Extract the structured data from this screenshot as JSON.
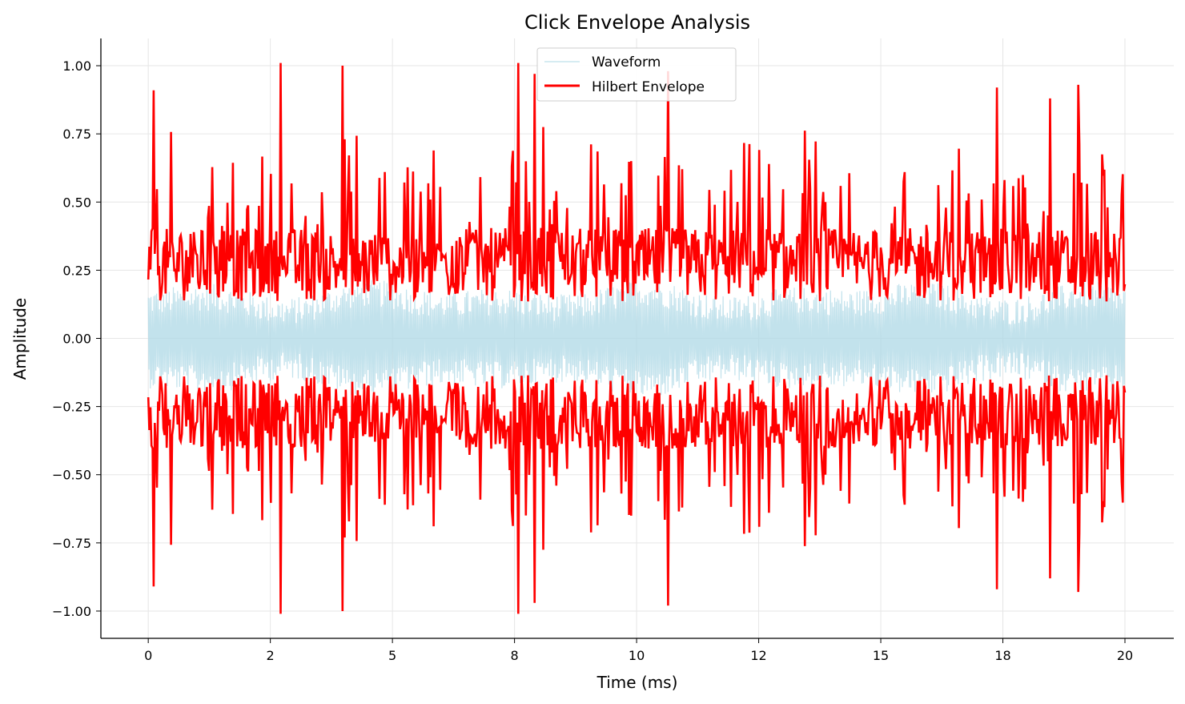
{
  "chart_data": {
    "type": "line",
    "title": "Click Envelope Analysis",
    "xlabel": "Time (ms)",
    "ylabel": "Amplitude",
    "xlim": [
      -0.97,
      21.0
    ],
    "ylim": [
      -1.1,
      1.1
    ],
    "x_ticks": [
      0,
      2.5,
      5,
      7.5,
      10,
      12.5,
      15,
      17.5,
      20
    ],
    "x_tick_labels": [
      "0",
      "2",
      "5",
      "8",
      "10",
      "12",
      "15",
      "18",
      "20"
    ],
    "y_ticks": [
      1.0,
      0.75,
      0.5,
      0.25,
      0.0,
      -0.25,
      -0.5,
      -0.75,
      -1.0
    ],
    "y_tick_labels": [
      "1.00",
      "0.75",
      "0.50",
      "0.25",
      "0.00",
      "−0.25",
      "−0.50",
      "−0.75",
      "−1.00"
    ],
    "grid": true,
    "legend_position": "top-center",
    "series": [
      {
        "name": "Waveform",
        "color": "#add8e6",
        "style": "dense oscillation",
        "x_range": [
          0,
          20
        ],
        "typical_amplitude": 0.12,
        "peak_amplitude": 0.22
      },
      {
        "name": "Hilbert Envelope",
        "color": "#ff0000",
        "style": "mirrored envelope",
        "x_range": [
          0,
          20
        ],
        "typical_amplitude": 0.3,
        "peaks": [
          {
            "x": 0.1,
            "y": 0.91
          },
          {
            "x": 2.7,
            "y": 1.01
          },
          {
            "x": 3.97,
            "y": 1.0
          },
          {
            "x": 7.57,
            "y": 1.01
          },
          {
            "x": 7.92,
            "y": 0.97
          },
          {
            "x": 10.65,
            "y": 0.98
          },
          {
            "x": 17.37,
            "y": 0.92
          },
          {
            "x": 18.47,
            "y": 0.88
          },
          {
            "x": 19.05,
            "y": 0.93
          }
        ]
      }
    ]
  }
}
